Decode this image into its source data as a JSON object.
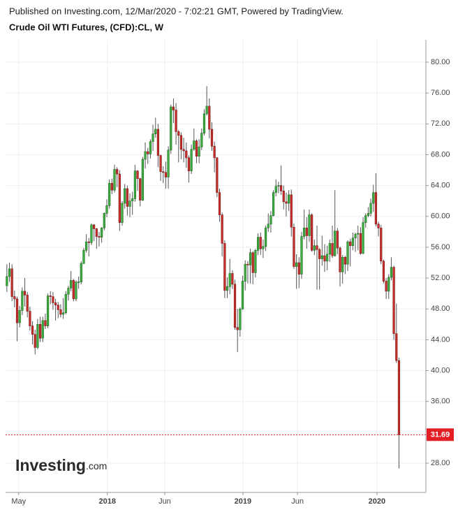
{
  "chart_data": {
    "type": "candlestick",
    "subtitle": "Published on Investing.com, 12/Mar/2020 - 7:02:21 GMT, Powered by TradingView.",
    "title": "Crude Oil WTI Futures, (CFD):CL, W",
    "watermark": [
      "Investing",
      ".com"
    ],
    "up_color": "#3dae3f",
    "down_color": "#c9302c",
    "last_price": 31.69,
    "last_price_color": "#e31e24",
    "grid": true,
    "xlim": [
      -0.5,
      163.5
    ],
    "xticks": [
      {
        "value": 4.6,
        "label": "May"
      },
      {
        "value": 39.2,
        "label": "2018"
      },
      {
        "value": 61.6,
        "label": "Jun"
      },
      {
        "value": 92.1,
        "label": "2019"
      },
      {
        "value": 113.4,
        "label": "Jun"
      },
      {
        "value": 144.4,
        "label": "2020"
      }
    ],
    "ylim": [
      24.2,
      82.9
    ],
    "yticks": [
      {
        "value": 28,
        "label": "28.00"
      },
      {
        "value": 36,
        "label": "36.00"
      },
      {
        "value": 40,
        "label": "40.00"
      },
      {
        "value": 44,
        "label": "44.00"
      },
      {
        "value": 48,
        "label": "48.00"
      },
      {
        "value": 52,
        "label": "52.00"
      },
      {
        "value": 56,
        "label": "56.00"
      },
      {
        "value": 60,
        "label": "60.00"
      },
      {
        "value": 64,
        "label": "64.00"
      },
      {
        "value": 68,
        "label": "68.00"
      },
      {
        "value": 72,
        "label": "72.00"
      },
      {
        "value": 76,
        "label": "76.00"
      },
      {
        "value": 80,
        "label": "80.00"
      }
    ],
    "open": [
      51.0,
      52.2,
      53.2,
      49.6,
      49.3,
      46.2,
      47.8,
      50.3,
      49.8,
      47.7,
      45.8,
      44.7,
      43.0,
      46.0,
      44.2,
      46.5,
      45.8,
      49.7,
      49.6,
      48.8,
      48.5,
      47.9,
      47.3,
      47.5,
      49.9,
      50.7,
      51.7,
      49.3,
      51.5,
      51.5,
      53.9,
      55.6,
      56.7,
      56.6,
      58.9,
      58.4,
      57.4,
      57.3,
      58.5,
      60.4,
      61.4,
      64.3,
      63.4,
      66.1,
      65.5,
      59.2,
      61.7,
      63.6,
      61.3,
      62.0,
      62.3,
      65.9,
      64.9,
      62.1,
      67.4,
      68.4,
      68.1,
      69.7,
      70.7,
      71.3,
      67.9,
      65.8,
      65.7,
      65.1,
      68.6,
      74.2,
      73.8,
      71.0,
      70.5,
      68.7,
      68.5,
      67.6,
      65.9,
      68.7,
      69.8,
      67.8,
      69.0,
      70.8,
      73.3,
      74.3,
      71.3,
      69.1,
      67.6,
      63.1,
      60.2,
      56.5,
      50.4,
      50.9,
      52.6,
      51.2,
      45.6,
      45.3,
      48.0,
      51.6,
      53.8,
      53.7,
      55.3,
      52.7,
      55.6,
      57.3,
      55.8,
      56.1,
      58.5,
      59.0,
      60.1,
      63.1,
      63.9,
      64.0,
      63.3,
      61.9,
      61.7,
      62.8,
      58.6,
      53.5,
      54.0,
      52.5,
      57.4,
      58.5,
      57.5,
      60.2,
      55.6,
      56.2,
      55.7,
      54.5,
      54.9,
      54.2,
      55.1,
      56.5,
      54.9,
      58.1,
      55.9,
      52.8,
      54.7,
      53.8,
      56.7,
      56.2,
      57.2,
      57.7,
      57.8,
      55.2,
      59.2,
      60.1,
      60.4,
      61.7,
      63.1,
      59.0,
      58.5,
      54.2,
      51.6,
      50.3,
      52.1,
      53.4,
      44.8,
      41.3
    ],
    "high": [
      53.8,
      54.0,
      53.8,
      50.4,
      49.6,
      48.4,
      50.8,
      52.0,
      50.2,
      48.3,
      46.4,
      45.3,
      46.7,
      47.0,
      47.0,
      47.4,
      50.0,
      50.3,
      50.2,
      49.3,
      48.9,
      48.6,
      49.4,
      50.3,
      51.0,
      52.9,
      51.9,
      51.7,
      52.2,
      54.2,
      55.9,
      57.7,
      57.2,
      59.1,
      59.0,
      58.5,
      58.0,
      58.6,
      60.5,
      62.2,
      64.8,
      64.9,
      66.7,
      66.4,
      66.0,
      62.0,
      64.2,
      64.0,
      63.0,
      63.2,
      66.7,
      66.0,
      65.0,
      67.7,
      69.6,
      68.9,
      70.0,
      71.9,
      72.8,
      72.0,
      68.0,
      66.5,
      67.1,
      69.1,
      74.5,
      75.3,
      74.7,
      71.2,
      70.9,
      70.2,
      69.6,
      67.9,
      69.3,
      71.4,
      70.0,
      70.0,
      71.4,
      73.9,
      76.9,
      75.3,
      72.2,
      69.7,
      67.7,
      63.6,
      60.5,
      56.9,
      52.1,
      54.5,
      53.0,
      51.8,
      48.0,
      48.2,
      52.3,
      54.3,
      54.2,
      55.8,
      55.5,
      55.8,
      57.8,
      57.9,
      57.0,
      58.8,
      60.4,
      60.7,
      63.4,
      64.8,
      64.5,
      66.6,
      64.0,
      63.1,
      63.4,
      63.5,
      59.1,
      55.1,
      54.7,
      58.0,
      60.9,
      59.9,
      60.9,
      60.4,
      57.0,
      58.8,
      55.9,
      57.5,
      56.4,
      56.2,
      57.0,
      58.8,
      63.4,
      58.5,
      56.1,
      55.0,
      54.9,
      56.9,
      57.1,
      57.9,
      57.9,
      58.8,
      58.6,
      59.9,
      60.4,
      61.2,
      62.3,
      64.1,
      65.6,
      59.3,
      58.9,
      54.4,
      52.0,
      52.5,
      54.7,
      53.6,
      48.7,
      41.7
    ],
    "low": [
      50.2,
      51.5,
      49.0,
      48.2,
      43.8,
      45.6,
      47.2,
      48.3,
      46.9,
      45.2,
      43.4,
      42.1,
      42.8,
      43.7,
      43.7,
      45.4,
      45.5,
      48.6,
      47.9,
      46.5,
      46.8,
      46.9,
      46.7,
      47.3,
      49.1,
      50.3,
      49.0,
      49.0,
      50.6,
      51.2,
      53.8,
      55.3,
      54.8,
      56.3,
      56.8,
      55.8,
      56.1,
      56.6,
      58.2,
      59.9,
      61.0,
      62.9,
      63.1,
      63.8,
      58.1,
      58.8,
      61.0,
      60.1,
      59.9,
      60.2,
      61.9,
      63.3,
      61.3,
      62.0,
      66.2,
      66.8,
      67.5,
      68.5,
      70.2,
      66.4,
      64.6,
      64.3,
      63.6,
      63.6,
      68.1,
      72.1,
      69.3,
      67.0,
      67.4,
      67.0,
      66.3,
      64.4,
      65.5,
      68.5,
      66.9,
      66.9,
      68.6,
      70.5,
      73.1,
      70.1,
      68.5,
      65.7,
      62.5,
      59.3,
      54.8,
      49.4,
      49.4,
      49.9,
      50.6,
      45.3,
      42.4,
      44.4,
      47.9,
      50.4,
      51.3,
      51.3,
      51.2,
      52.1,
      55.0,
      55.0,
      54.6,
      55.5,
      58.0,
      57.9,
      60.0,
      62.6,
      63.0,
      62.8,
      60.9,
      60.0,
      60.7,
      57.4,
      53.2,
      50.6,
      50.7,
      51.9,
      57.0,
      55.8,
      56.7,
      55.4,
      55.0,
      50.5,
      50.5,
      53.6,
      52.8,
      53.0,
      54.1,
      54.6,
      54.8,
      55.1,
      50.9,
      51.3,
      52.5,
      52.9,
      53.5,
      55.6,
      55.4,
      55.6,
      55.0,
      55.1,
      58.5,
      59.9,
      60.0,
      60.6,
      58.7,
      57.4,
      53.8,
      51.3,
      49.3,
      49.3,
      51.7,
      44.0,
      41.0,
      27.3
    ],
    "close": [
      52.2,
      53.2,
      49.6,
      49.3,
      46.2,
      47.8,
      50.3,
      49.8,
      47.7,
      45.8,
      44.7,
      43.0,
      46.0,
      44.2,
      46.5,
      45.8,
      49.7,
      49.6,
      48.8,
      48.5,
      47.9,
      47.3,
      47.5,
      49.9,
      50.7,
      51.7,
      49.3,
      51.5,
      51.5,
      53.9,
      55.6,
      56.7,
      56.6,
      58.9,
      58.4,
      57.4,
      57.3,
      58.5,
      60.4,
      61.4,
      64.3,
      63.4,
      66.1,
      65.5,
      59.2,
      61.7,
      63.6,
      61.3,
      62.0,
      62.3,
      65.9,
      64.9,
      62.1,
      67.4,
      68.4,
      68.1,
      69.7,
      70.7,
      71.3,
      67.9,
      65.8,
      65.7,
      65.1,
      68.6,
      74.2,
      73.8,
      71.0,
      70.5,
      68.7,
      68.5,
      67.6,
      65.9,
      68.7,
      69.8,
      67.8,
      69.0,
      70.8,
      73.3,
      74.3,
      71.3,
      69.1,
      67.6,
      63.1,
      60.2,
      56.5,
      50.4,
      50.9,
      52.6,
      51.2,
      45.6,
      45.3,
      48.0,
      51.6,
      53.8,
      53.7,
      55.3,
      52.7,
      55.6,
      57.3,
      55.8,
      56.1,
      58.5,
      59.0,
      60.1,
      63.1,
      63.9,
      64.0,
      63.3,
      61.9,
      61.7,
      62.8,
      58.6,
      53.5,
      54.0,
      52.5,
      57.4,
      58.5,
      57.5,
      60.2,
      55.6,
      56.2,
      55.7,
      54.5,
      54.9,
      54.2,
      55.1,
      56.5,
      54.9,
      58.1,
      55.9,
      52.8,
      54.7,
      53.8,
      56.7,
      56.2,
      57.2,
      57.7,
      57.8,
      55.2,
      59.2,
      60.1,
      60.4,
      61.7,
      63.1,
      59.0,
      58.5,
      54.2,
      51.6,
      50.3,
      52.1,
      53.4,
      44.8,
      41.3,
      31.69
    ]
  }
}
